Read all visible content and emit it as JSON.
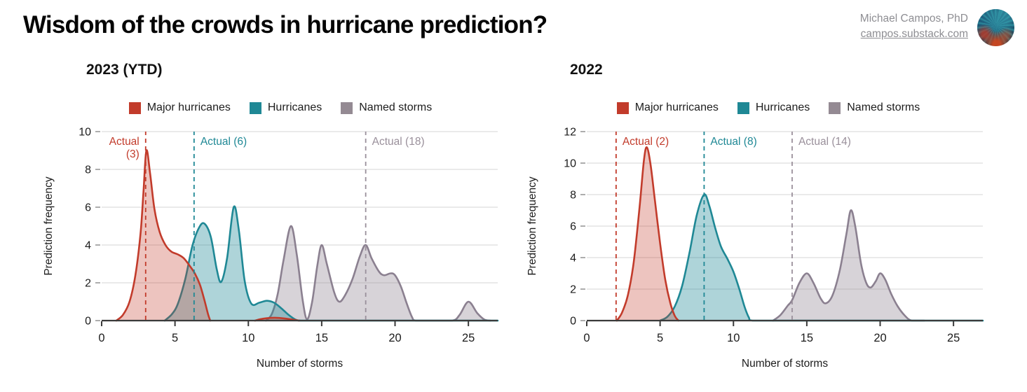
{
  "page": {
    "title": "Wisdom of the crowds in hurricane prediction?"
  },
  "author": {
    "name": "Michael Campos, PhD",
    "link": "campos.substack.com",
    "avatar": "fern-pattern-avatar"
  },
  "colors": {
    "accent_red": "#c23b2b",
    "accent_teal": "#1f8895",
    "accent_gray": "#8b8090",
    "grid": "#dddddd",
    "axis": "#3a3a3a",
    "tick_label": "#1c1c1c",
    "author_text": "#8e8e93"
  },
  "legend": {
    "items": [
      {
        "label": "Major hurricanes",
        "color": "#c23b2b"
      },
      {
        "label": "Hurricanes",
        "color": "#1f8895"
      },
      {
        "label": "Named storms",
        "color": "#948a93"
      }
    ]
  },
  "chart_data": [
    {
      "type": "area",
      "title": "2023 (YTD)",
      "xlabel": "Number of storms",
      "ylabel": "Prediction frequency",
      "xlim": [
        0,
        27
      ],
      "ylim": [
        0,
        10
      ],
      "xticks": [
        0,
        5,
        10,
        15,
        20,
        25
      ],
      "yticks": [
        0,
        2,
        4,
        6,
        8,
        10
      ],
      "grid": "horizontal",
      "legend_position": "top",
      "series": [
        {
          "name": "Named storms",
          "color": "#8b8090",
          "fill_opacity": 0.35,
          "segments": [
            [
              [
                11.2,
                0
              ],
              [
                11.6,
                0.35
              ],
              [
                12,
                1.4
              ],
              [
                12.4,
                3.2
              ],
              [
                12.9,
                5
              ],
              [
                13.3,
                3.5
              ],
              [
                13.7,
                1.1
              ],
              [
                14,
                0.07
              ],
              [
                14.35,
                1
              ],
              [
                14.7,
                2.9
              ],
              [
                15,
                4
              ],
              [
                15.35,
                3
              ],
              [
                15.85,
                1.5
              ],
              [
                16.2,
                1
              ],
              [
                16.6,
                1.35
              ],
              [
                17.1,
                2.2
              ],
              [
                17.6,
                3.4
              ],
              [
                18,
                4
              ],
              [
                18.4,
                3.3
              ],
              [
                18.9,
                2.6
              ],
              [
                19.25,
                2.4
              ],
              [
                19.7,
                2.5
              ],
              [
                20,
                2.4
              ],
              [
                20.4,
                1.8
              ],
              [
                20.8,
                0.9
              ],
              [
                21.15,
                0.2
              ],
              [
                21.4,
                0
              ],
              [
                22.4,
                0
              ],
              [
                23.9,
                0
              ],
              [
                24.4,
                0.3
              ],
              [
                25,
                1
              ],
              [
                25.6,
                0.4
              ],
              [
                26.1,
                0.05
              ],
              [
                26.5,
                0
              ]
            ]
          ]
        },
        {
          "name": "Hurricanes",
          "color": "#1f8895",
          "fill_opacity": 0.36,
          "segments": [
            [
              [
                4.3,
                0
              ],
              [
                4.8,
                0.35
              ],
              [
                5.2,
                0.9
              ],
              [
                5.7,
                2.2
              ],
              [
                6.2,
                4
              ],
              [
                6.7,
                5
              ],
              [
                7.05,
                5.1
              ],
              [
                7.45,
                4.4
              ],
              [
                7.85,
                2.7
              ],
              [
                8.15,
                2.05
              ],
              [
                8.55,
                3.3
              ],
              [
                9,
                6
              ],
              [
                9.35,
                4.8
              ],
              [
                9.75,
                2.1
              ],
              [
                10.2,
                0.9
              ],
              [
                10.75,
                0.95
              ],
              [
                11.25,
                1.05
              ],
              [
                11.75,
                0.95
              ],
              [
                12.25,
                0.65
              ],
              [
                12.75,
                0.3
              ],
              [
                13.2,
                0.06
              ],
              [
                13.6,
                0
              ],
              [
                15,
                0
              ],
              [
                17,
                0
              ],
              [
                19,
                0
              ],
              [
                21,
                0
              ],
              [
                23,
                0
              ],
              [
                25,
                0
              ],
              [
                27,
                0
              ]
            ]
          ]
        },
        {
          "name": "Major hurricanes",
          "color": "#c23b2b",
          "fill_opacity": 0.3,
          "segments": [
            [
              [
                1,
                0
              ],
              [
                1.45,
                0.3
              ],
              [
                1.9,
                1
              ],
              [
                2.3,
                2.4
              ],
              [
                2.65,
                4.6
              ],
              [
                2.85,
                6.8
              ],
              [
                3.05,
                9
              ],
              [
                3.3,
                7.8
              ],
              [
                3.6,
                5.9
              ],
              [
                3.95,
                4.7
              ],
              [
                4.35,
                4
              ],
              [
                4.75,
                3.65
              ],
              [
                5.2,
                3.5
              ],
              [
                5.6,
                3.3
              ],
              [
                6,
                2.9
              ],
              [
                6.35,
                2.5
              ],
              [
                6.7,
                1.9
              ],
              [
                7,
                1.1
              ],
              [
                7.25,
                0.35
              ],
              [
                7.4,
                0
              ]
            ],
            [
              [
                10.45,
                0
              ],
              [
                11,
                0.1
              ],
              [
                11.8,
                0.15
              ],
              [
                12.6,
                0.1
              ],
              [
                13.1,
                0.04
              ],
              [
                13.45,
                0
              ]
            ]
          ]
        }
      ],
      "annotations": [
        {
          "x": 3,
          "color": "#c23b2b",
          "lines": [
            "Actual",
            "(3)"
          ],
          "side": "left"
        },
        {
          "x": 6.3,
          "color": "#1f8895",
          "lines": [
            "Actual (6)"
          ],
          "side": "right"
        },
        {
          "x": 18,
          "color": "#9a909b",
          "lines": [
            "Actual (18)"
          ],
          "side": "right"
        }
      ]
    },
    {
      "type": "area",
      "title": "2022",
      "xlabel": "Number of storms",
      "ylabel": "Prediction frequency",
      "xlim": [
        0,
        27
      ],
      "ylim": [
        0,
        12
      ],
      "xticks": [
        0,
        5,
        10,
        15,
        20,
        25
      ],
      "yticks": [
        0,
        2,
        4,
        6,
        8,
        10,
        12
      ],
      "grid": "horizontal",
      "legend_position": "top",
      "series": [
        {
          "name": "Named storms",
          "color": "#8b8090",
          "fill_opacity": 0.35,
          "segments": [
            [
              [
                12.7,
                0
              ],
              [
                13.2,
                0.35
              ],
              [
                13.7,
                0.95
              ],
              [
                14,
                1.3
              ],
              [
                14.5,
                2.4
              ],
              [
                15,
                3
              ],
              [
                15.45,
                2.4
              ],
              [
                15.95,
                1.4
              ],
              [
                16.3,
                1.1
              ],
              [
                16.75,
                1.6
              ],
              [
                17.25,
                3.2
              ],
              [
                17.7,
                5.5
              ],
              [
                18,
                7
              ],
              [
                18.3,
                6
              ],
              [
                18.7,
                3.6
              ],
              [
                19.05,
                2.4
              ],
              [
                19.35,
                2.1
              ],
              [
                19.7,
                2.5
              ],
              [
                20,
                3
              ],
              [
                20.35,
                2.6
              ],
              [
                20.75,
                1.7
              ],
              [
                21.2,
                0.9
              ],
              [
                21.7,
                0.3
              ],
              [
                22.15,
                0
              ],
              [
                23,
                0
              ]
            ]
          ]
        },
        {
          "name": "Hurricanes",
          "color": "#1f8895",
          "fill_opacity": 0.36,
          "segments": [
            [
              [
                5,
                0
              ],
              [
                5.5,
                0.25
              ],
              [
                6,
                0.9
              ],
              [
                6.5,
                2.2
              ],
              [
                7,
                4.3
              ],
              [
                7.5,
                6.7
              ],
              [
                8,
                8
              ],
              [
                8.35,
                7.3
              ],
              [
                8.75,
                5.9
              ],
              [
                9.15,
                4.7
              ],
              [
                9.6,
                3.9
              ],
              [
                10,
                3.1
              ],
              [
                10.4,
                2
              ],
              [
                10.75,
                0.9
              ],
              [
                11.05,
                0.2
              ],
              [
                11.3,
                0
              ],
              [
                13,
                0
              ],
              [
                16,
                0
              ],
              [
                19,
                0
              ],
              [
                22,
                0
              ],
              [
                25,
                0
              ],
              [
                27,
                0
              ]
            ]
          ]
        },
        {
          "name": "Major hurricanes",
          "color": "#c23b2b",
          "fill_opacity": 0.3,
          "segments": [
            [
              [
                2.05,
                0
              ],
              [
                2.4,
                0.5
              ],
              [
                2.8,
                1.6
              ],
              [
                3.2,
                3.7
              ],
              [
                3.6,
                7.2
              ],
              [
                3.9,
                10.2
              ],
              [
                4.1,
                11
              ],
              [
                4.35,
                9.9
              ],
              [
                4.65,
                7.6
              ],
              [
                5,
                4.9
              ],
              [
                5.35,
                2.6
              ],
              [
                5.7,
                1.1
              ],
              [
                6,
                0.3
              ],
              [
                6.25,
                0
              ]
            ]
          ]
        }
      ],
      "annotations": [
        {
          "x": 2,
          "color": "#c23b2b",
          "lines": [
            "Actual (2)"
          ],
          "side": "right"
        },
        {
          "x": 8,
          "color": "#1f8895",
          "lines": [
            "Actual (8)"
          ],
          "side": "right"
        },
        {
          "x": 14,
          "color": "#9a909b",
          "lines": [
            "Actual (14)"
          ],
          "side": "right"
        }
      ]
    }
  ]
}
